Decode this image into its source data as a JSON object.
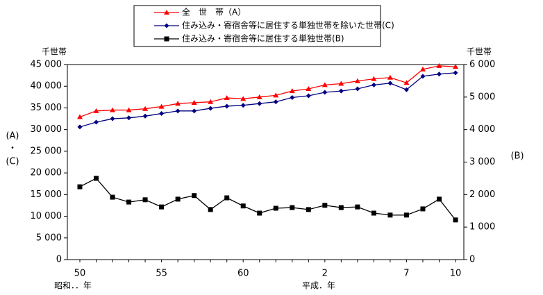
{
  "chart_data": {
    "type": "line",
    "y_unit": "千世帯",
    "y2_unit": "千世帯",
    "y_label": [
      "(A)",
      "・",
      "(C)"
    ],
    "y2_label": "(B)",
    "x_era_labels": [
      "昭和．．年",
      "平成．年"
    ],
    "categories": [
      "50",
      null,
      null,
      null,
      null,
      "55",
      null,
      null,
      null,
      null,
      "60",
      null,
      null,
      null,
      null,
      "2",
      null,
      null,
      null,
      null,
      "7",
      null,
      null,
      "10"
    ],
    "ylim": [
      0,
      45000
    ],
    "yticks": [
      0,
      {
        "value": 5000,
        "label": "5 000"
      },
      {
        "value": 10000,
        "label": "10 000"
      },
      {
        "value": 15000,
        "label": "15 000"
      },
      {
        "value": 20000,
        "label": "20 000"
      },
      {
        "value": 25000,
        "label": "25 000"
      },
      {
        "value": 30000,
        "label": "30 000"
      },
      {
        "value": 35000,
        "label": "35 000"
      },
      {
        "value": 40000,
        "label": "40 000"
      },
      {
        "value": 45000,
        "label": "45 000"
      }
    ],
    "y2lim": [
      0,
      6000
    ],
    "y2ticks": [
      0,
      {
        "value": 1000,
        "label": "1 000"
      },
      {
        "value": 2000,
        "label": "2 000"
      },
      {
        "value": 3000,
        "label": "3 000"
      },
      {
        "value": 4000,
        "label": "4 000"
      },
      {
        "value": 5000,
        "label": "5 000"
      },
      {
        "value": 6000,
        "label": "6 000"
      }
    ],
    "grid": false,
    "series": [
      {
        "name": "全　世　帯（A）",
        "color": "#ff0000",
        "marker": "triangle",
        "values": [
          32900,
          34300,
          34500,
          34500,
          34800,
          35300,
          36000,
          36200,
          36400,
          37300,
          37100,
          37500,
          37900,
          38900,
          39400,
          40300,
          40600,
          41200,
          41700,
          42000,
          40800,
          43900,
          44700,
          44500
        ]
      },
      {
        "name": "住み込み・寄宿舎等に居住する単独世帯を除いた世帯(C)",
        "color": "#000080",
        "marker": "diamond",
        "values": [
          30600,
          31700,
          32500,
          32700,
          33100,
          33700,
          34300,
          34300,
          34900,
          35400,
          35600,
          36000,
          36400,
          37400,
          37800,
          38600,
          38900,
          39400,
          40300,
          40700,
          39200,
          42300,
          42800,
          43100
        ]
      },
      {
        "name": "住み込み・寄宿舎等に居住する単独世帯(B)",
        "color": "#000000",
        "marker": "square",
        "axis": "y2",
        "values": [
          2240,
          2500,
          1920,
          1770,
          1840,
          1620,
          1860,
          1970,
          1540,
          1900,
          1650,
          1430,
          1580,
          1600,
          1540,
          1670,
          1600,
          1620,
          1430,
          1370,
          1370,
          1560,
          1860,
          1220
        ]
      }
    ]
  }
}
